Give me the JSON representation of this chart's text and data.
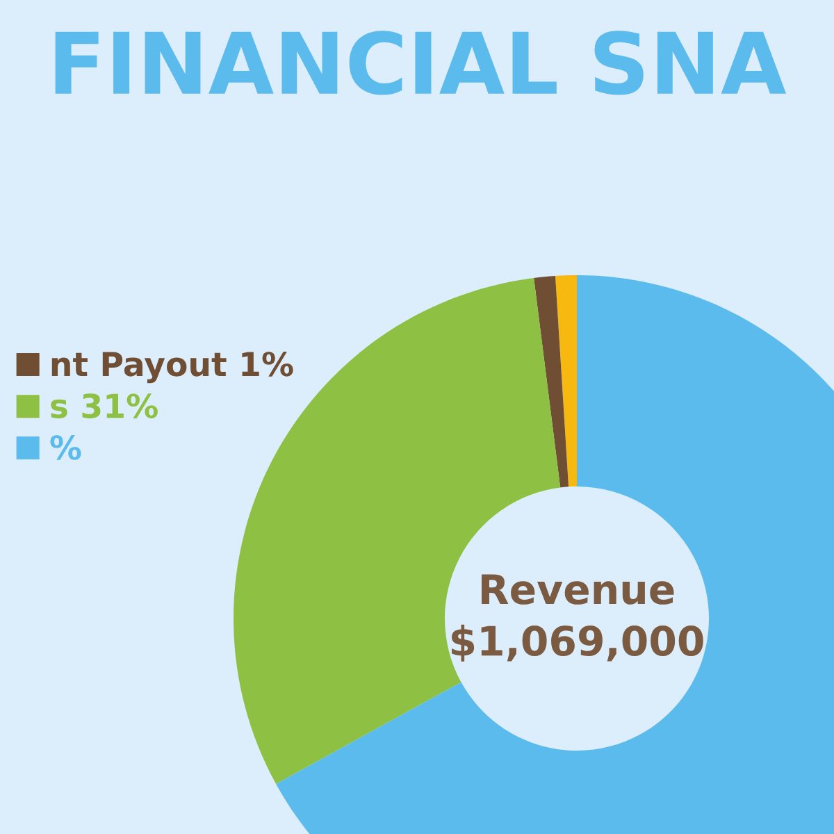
{
  "chart_data": {
    "type": "donut",
    "title": "FINANCIAL SNA",
    "categories": [
      null,
      "nt Payout 1%",
      "s 31%",
      "%"
    ],
    "values": [
      1,
      1,
      31,
      67
    ],
    "colors": [
      "#f7b90f",
      "#6f4e33",
      "#8dc043",
      "#5bbbec"
    ],
    "annotations": [
      "Revenue\n$1,069,000"
    ],
    "legend": "left"
  }
}
